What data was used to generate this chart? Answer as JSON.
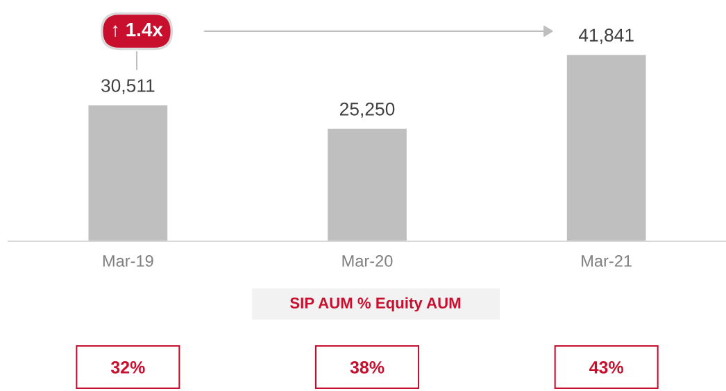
{
  "chart_data": {
    "type": "bar",
    "categories": [
      "Mar-19",
      "Mar-20",
      "Mar-21"
    ],
    "values": [
      30511,
      25250,
      41841
    ],
    "color": "#bfbfbf",
    "value_labels": [
      "30,511",
      "25,250",
      "41,841"
    ],
    "annotations": [
      "↑ 1.4x",
      "SIP AUM % Equity AUM",
      "32%",
      "38%",
      "43%"
    ]
  }
}
